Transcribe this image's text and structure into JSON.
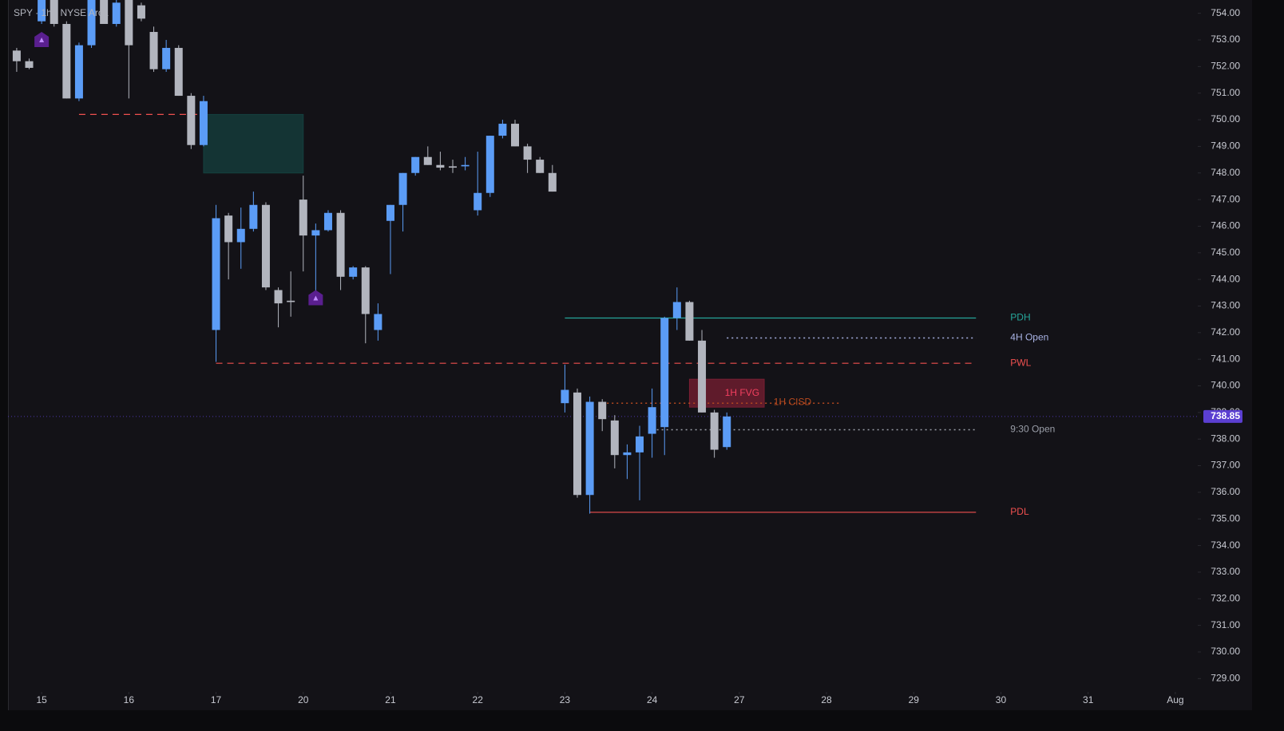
{
  "chart_data": {
    "type": "candlestick",
    "title": "SPY · 1h · NYSE Arca",
    "up_color": "#5b9cf6",
    "down_color": "#b2b5be",
    "x": [
      -2,
      -1,
      0,
      1,
      2,
      3,
      4,
      5,
      6,
      7,
      8,
      9,
      10,
      11,
      12,
      13,
      14,
      15,
      16,
      17,
      18,
      19,
      20,
      21,
      22,
      23,
      24,
      25,
      26,
      27,
      28,
      29,
      30,
      31,
      32,
      33,
      34,
      35,
      36,
      37,
      38,
      39,
      40,
      41,
      42,
      43,
      44,
      45,
      46,
      47,
      48,
      49,
      50,
      51,
      52,
      53,
      54,
      55
    ],
    "open": [
      752.6,
      752.2,
      753.7,
      754.6,
      753.6,
      750.8,
      752.8,
      754.5,
      753.6,
      754.5,
      754.3,
      753.3,
      751.9,
      752.7,
      750.9,
      749.05,
      742.1,
      746.4,
      745.4,
      745.9,
      746.8,
      743.6,
      743.2,
      747.0,
      745.65,
      745.85,
      746.5,
      744.1,
      744.45,
      742.1,
      746.2,
      746.8,
      748.0,
      748.6,
      748.3,
      748.25,
      748.25,
      746.6,
      747.25,
      749.4,
      749.85,
      749.0,
      748.5,
      748.0,
      739.35,
      739.75,
      735.9,
      739.4,
      738.7,
      737.4,
      737.5,
      738.2,
      738.45,
      742.55,
      743.15,
      741.7,
      739.0,
      737.7
    ],
    "high": [
      752.7,
      752.3,
      754.6,
      754.7,
      753.7,
      752.9,
      754.6,
      754.6,
      754.5,
      754.6,
      754.4,
      753.5,
      753.0,
      752.8,
      751.0,
      750.9,
      746.8,
      746.5,
      746.7,
      747.3,
      746.9,
      743.7,
      744.3,
      747.9,
      746.1,
      746.6,
      746.6,
      744.5,
      744.5,
      743.1,
      746.8,
      748.0,
      748.6,
      749.0,
      748.8,
      748.5,
      748.6,
      748.8,
      749.4,
      750.0,
      750.0,
      749.1,
      748.6,
      748.3,
      740.8,
      739.9,
      739.6,
      739.5,
      738.9,
      737.8,
      738.5,
      739.9,
      742.6,
      743.7,
      743.2,
      742.1,
      739.1,
      739.0
    ],
    "low": [
      751.8,
      751.9,
      753.6,
      753.5,
      750.8,
      750.7,
      752.7,
      753.6,
      753.5,
      750.8,
      753.7,
      751.8,
      751.8,
      750.9,
      748.9,
      749.0,
      740.9,
      744.0,
      744.4,
      745.8,
      743.6,
      742.2,
      742.6,
      744.3,
      743.5,
      745.8,
      743.6,
      744.0,
      741.6,
      741.7,
      744.2,
      745.8,
      747.9,
      748.3,
      748.1,
      748.0,
      748.1,
      746.4,
      747.1,
      749.3,
      749.0,
      748.0,
      748.0,
      747.3,
      739.0,
      735.8,
      735.2,
      738.3,
      736.9,
      736.5,
      735.7,
      737.3,
      737.4,
      742.1,
      741.7,
      739.0,
      737.3,
      737.6
    ],
    "close": [
      752.2,
      751.95,
      754.5,
      753.6,
      750.8,
      752.8,
      754.5,
      753.6,
      754.4,
      752.8,
      753.8,
      751.9,
      752.7,
      750.9,
      749.05,
      750.7,
      746.3,
      745.4,
      745.9,
      746.8,
      743.7,
      743.1,
      743.15,
      745.65,
      745.85,
      746.5,
      744.1,
      744.45,
      742.7,
      742.7,
      746.8,
      748.0,
      748.6,
      748.3,
      748.2,
      748.2,
      748.3,
      747.25,
      749.4,
      749.85,
      749.0,
      748.5,
      748.0,
      747.3,
      739.85,
      735.9,
      739.4,
      738.75,
      737.4,
      737.5,
      738.1,
      739.2,
      742.55,
      743.15,
      741.7,
      739.0,
      737.6,
      738.85
    ],
    "last_price": 738.85,
    "last_price_color": "#5b3fd1",
    "xlim": [
      -2.7,
      92.8
    ],
    "xticks": [
      {
        "value": 0,
        "label": "15"
      },
      {
        "value": 7,
        "label": "16"
      },
      {
        "value": 14,
        "label": "17"
      },
      {
        "value": 21,
        "label": "20"
      },
      {
        "value": 28,
        "label": "21"
      },
      {
        "value": 35,
        "label": "22"
      },
      {
        "value": 42,
        "label": "23"
      },
      {
        "value": 49,
        "label": "24"
      },
      {
        "value": 56,
        "label": "27"
      },
      {
        "value": 63,
        "label": "28"
      },
      {
        "value": 70,
        "label": "29"
      },
      {
        "value": 77,
        "label": "30"
      },
      {
        "value": 84,
        "label": "31"
      },
      {
        "value": 91,
        "label": "Aug"
      }
    ],
    "ylim": [
      728.5,
      754.5
    ],
    "yticks": [
      {
        "value": 754,
        "label": "754.00"
      },
      {
        "value": 753,
        "label": "753.00"
      },
      {
        "value": 752,
        "label": "752.00"
      },
      {
        "value": 751,
        "label": "751.00"
      },
      {
        "value": 750,
        "label": "750.00"
      },
      {
        "value": 749,
        "label": "749.00"
      },
      {
        "value": 748,
        "label": "748.00"
      },
      {
        "value": 747,
        "label": "747.00"
      },
      {
        "value": 746,
        "label": "746.00"
      },
      {
        "value": 745,
        "label": "745.00"
      },
      {
        "value": 744,
        "label": "744.00"
      },
      {
        "value": 743,
        "label": "743.00"
      },
      {
        "value": 742,
        "label": "742.00"
      },
      {
        "value": 741,
        "label": "741.00"
      },
      {
        "value": 740,
        "label": "740.00"
      },
      {
        "value": 739,
        "label": "739.00"
      },
      {
        "value": 738,
        "label": "738.00"
      },
      {
        "value": 737,
        "label": "737.00"
      },
      {
        "value": 736,
        "label": "736.00"
      },
      {
        "value": 735,
        "label": "735.00"
      },
      {
        "value": 734,
        "label": "734.00"
      },
      {
        "value": 733,
        "label": "733.00"
      },
      {
        "value": 732,
        "label": "732.00"
      },
      {
        "value": 731,
        "label": "731.00"
      },
      {
        "value": 730,
        "label": "730.00"
      },
      {
        "value": 729,
        "label": "729.00"
      }
    ],
    "levels": [
      {
        "label": "PDH",
        "value": 742.55,
        "x": [
          42,
          75
        ],
        "color": "#26a69a",
        "style": "solid"
      },
      {
        "label": "4H Open",
        "value": 741.8,
        "x": [
          55,
          75
        ],
        "color": "#aab4e6",
        "style": "dotted"
      },
      {
        "label": "PWL",
        "value": 740.85,
        "x": [
          14,
          75
        ],
        "color": "#f0504f",
        "style": "dashed"
      },
      {
        "label": "9:30 Open",
        "value": 738.35,
        "x": [
          49,
          75
        ],
        "color": "#9a9ea8",
        "style": "dotted"
      },
      {
        "label": "PDL",
        "value": 735.25,
        "x": [
          44,
          75
        ],
        "color": "#f0504f",
        "style": "solid"
      },
      {
        "label": "1H CISD",
        "value": 739.35,
        "x": [
          45,
          64
        ],
        "color": "#b84a1f",
        "style": "dotted",
        "inline": true
      },
      {
        "value": 750.2,
        "x": [
          3,
          13
        ],
        "color": "#f0504f",
        "style": "dashed"
      }
    ],
    "zones": [
      {
        "label": "1H FVG",
        "y": [
          739.2,
          740.25
        ],
        "x": [
          52,
          58
        ],
        "color": "#7a1f33"
      },
      {
        "y": [
          748.0,
          750.2
        ],
        "x": [
          13,
          21
        ],
        "color": "#15403f"
      }
    ],
    "markers": [
      {
        "x": 0,
        "y": 753
      },
      {
        "x": 22,
        "y": 743.3
      }
    ],
    "marker_color": "#5a1f8f"
  }
}
